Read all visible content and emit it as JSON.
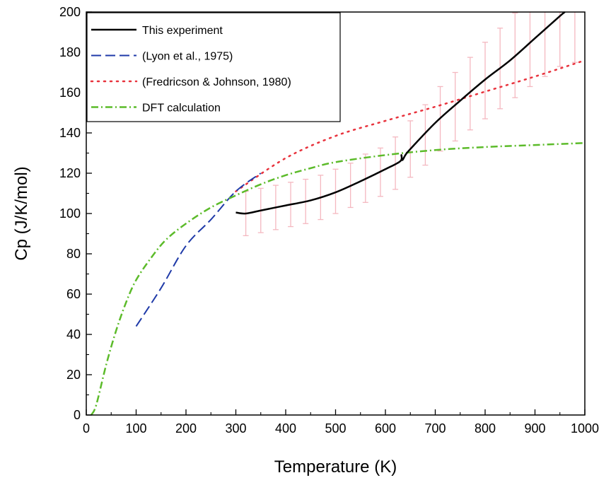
{
  "chart_data": {
    "type": "line",
    "title": "",
    "xlabel": "Temperature (K)",
    "ylabel": "Cp (J/K/mol)",
    "xlim": [
      0,
      1000
    ],
    "ylim": [
      0,
      200
    ],
    "x_ticks": [
      0,
      100,
      200,
      300,
      400,
      500,
      600,
      700,
      800,
      900,
      1000
    ],
    "y_ticks": [
      0,
      20,
      40,
      60,
      80,
      100,
      120,
      140,
      160,
      180,
      200
    ],
    "grid": false,
    "legend_position": "top-left",
    "series": [
      {
        "name": "This experiment",
        "style": "solid",
        "color": "#000000",
        "x": [
          300,
          320,
          350,
          400,
          450,
          500,
          550,
          600,
          630,
          632,
          634,
          640,
          650,
          700,
          750,
          800,
          850,
          900,
          950,
          960
        ],
        "y": [
          100.5,
          100,
          101.5,
          104,
          106.5,
          110.5,
          116,
          122,
          126,
          129,
          126.5,
          129,
          132,
          145,
          156,
          166.5,
          176,
          187,
          198,
          200
        ],
        "error_bars": {
          "color": "#f4b8c0",
          "x": [
            320,
            350,
            380,
            410,
            440,
            470,
            500,
            530,
            560,
            590,
            620,
            650,
            680,
            710,
            740,
            770,
            800,
            830,
            860,
            890,
            920,
            950,
            980
          ],
          "y": [
            100,
            101.5,
            103,
            104.5,
            106,
            108,
            111,
            114,
            117.5,
            120.5,
            125,
            132,
            139,
            147,
            153,
            159.5,
            166,
            172,
            178.5,
            185,
            191,
            197,
            200
          ],
          "err": [
            11,
            11,
            11,
            11,
            11,
            11,
            11,
            11,
            12,
            12,
            13,
            14,
            15,
            16,
            17,
            18,
            19,
            20,
            21,
            22,
            23,
            24,
            25
          ]
        }
      },
      {
        "name": "(Lyon et al., 1975)",
        "style": "dashed",
        "color": "#1f3aa8",
        "x": [
          100,
          150,
          200,
          250,
          300,
          350
        ],
        "y": [
          44,
          63,
          84,
          97,
          111,
          120
        ]
      },
      {
        "name": "(Fredricson & Johnson, 1980)",
        "style": "dotted",
        "color": "#e8323c",
        "x": [
          300,
          400,
          500,
          600,
          700,
          800,
          900,
          1000
        ],
        "y": [
          111,
          127.5,
          138.5,
          146,
          153,
          160.5,
          168,
          176
        ]
      },
      {
        "name": "DFT calculation",
        "style": "dash-dot",
        "color": "#5cbb2a",
        "x": [
          10,
          20,
          40,
          60,
          80,
          100,
          130,
          160,
          200,
          250,
          300,
          350,
          400,
          450,
          500,
          600,
          700,
          800,
          900,
          1000
        ],
        "y": [
          0,
          5,
          25,
          42,
          56,
          67,
          78,
          87,
          95,
          103,
          109,
          114.5,
          119,
          122.5,
          125.5,
          129,
          131.5,
          133,
          134,
          135
        ]
      }
    ]
  }
}
